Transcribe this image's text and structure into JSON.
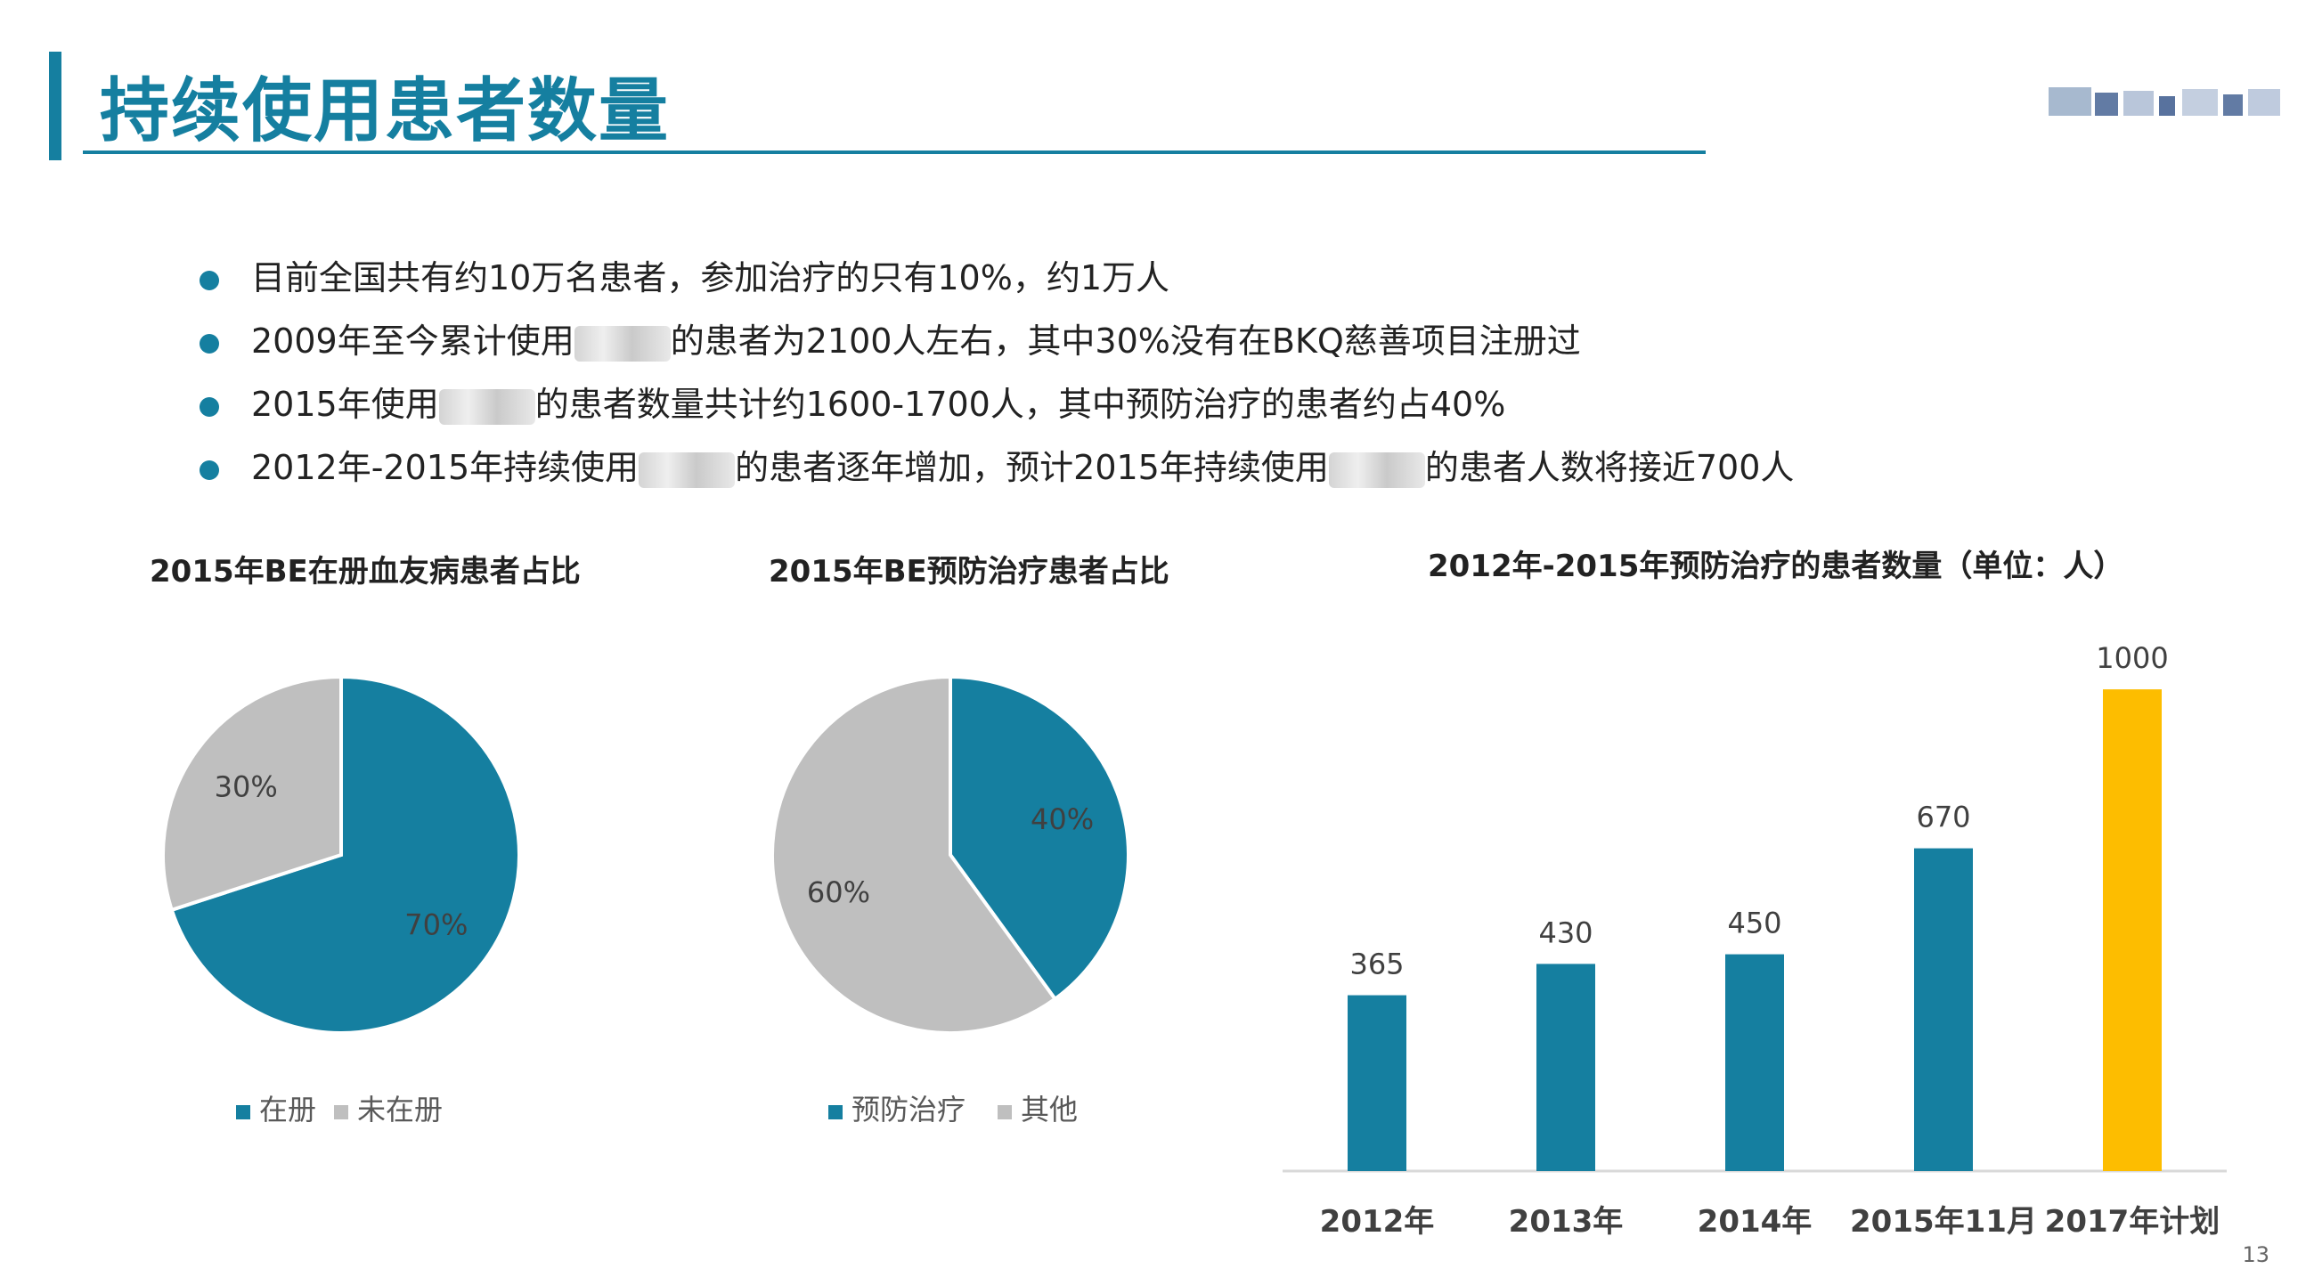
{
  "slide": {
    "title": "持续使用患者数量",
    "page_number": "13",
    "bullets": [
      {
        "before": "目前全国共有约10万名患者，参加治疗的只有10%，约1万人",
        "after": ""
      },
      {
        "before": "2009年至今累计使用",
        "after": "的患者为2100人左右，其中30%没有在BKQ慈善项目注册过"
      },
      {
        "before": "2015年使用",
        "after": "的患者数量共计约1600-1700人，其中预防治疗的患者约占40%"
      },
      {
        "before": "2012年-2015年持续使用",
        "after": "的患者逐年增加，预计2015年持续使用",
        "tail": "的患者人数将接近700人"
      }
    ]
  },
  "chart_data": [
    {
      "type": "pie",
      "title": "2015年BE在册血友病患者占比",
      "labels": [
        "在册",
        "未在册"
      ],
      "values": [
        70,
        30
      ],
      "data_labels": [
        "70%",
        "30%"
      ],
      "colors": [
        "#157fa0",
        "#bfbfbf"
      ],
      "legend": "bottom"
    },
    {
      "type": "pie",
      "title": "2015年BE预防治疗患者占比",
      "labels": [
        "预防治疗",
        "其他"
      ],
      "values": [
        40,
        60
      ],
      "data_labels": [
        "40%",
        "60%"
      ],
      "colors": [
        "#157fa0",
        "#bfbfbf"
      ],
      "legend": "bottom"
    },
    {
      "type": "bar",
      "title": "2012年-2015年预防治疗的患者数量（单位：人）",
      "categories": [
        "2012年",
        "2013年",
        "2014年",
        "2015年11月",
        "2017年计划"
      ],
      "values": [
        365,
        430,
        450,
        670,
        1000
      ],
      "colors": [
        "#157fa0",
        "#157fa0",
        "#157fa0",
        "#157fa0",
        "#fdbd00"
      ],
      "ylim": [
        0,
        1100
      ],
      "grid": false
    }
  ]
}
